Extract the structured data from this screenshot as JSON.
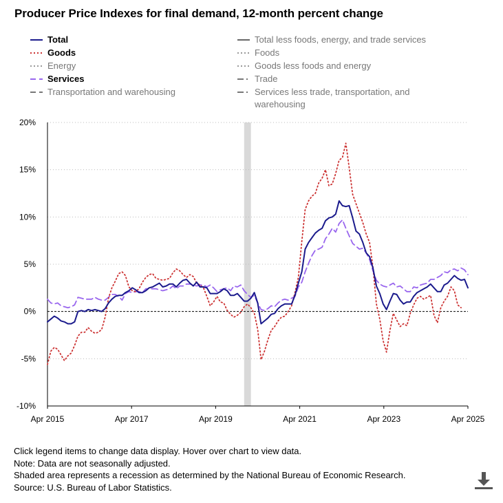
{
  "title": "Producer Price Indexes for final demand, 12-month percent change",
  "legend": [
    {
      "key": "total",
      "label": "Total",
      "color": "#1a1a8c",
      "dash": "solid",
      "active": true
    },
    {
      "key": "total_less",
      "label": "Total less foods, energy, and trade services",
      "color": "#666666",
      "dash": "solid",
      "active": false
    },
    {
      "key": "goods",
      "label": "Goods",
      "color": "#cc3333",
      "dash": "dot",
      "active": true
    },
    {
      "key": "foods",
      "label": "Foods",
      "color": "#999999",
      "dash": "dot",
      "active": false
    },
    {
      "key": "energy",
      "label": "Energy",
      "color": "#999999",
      "dash": "dot",
      "active": false
    },
    {
      "key": "goods_less",
      "label": "Goods less foods and energy",
      "color": "#999999",
      "dash": "dot",
      "active": false
    },
    {
      "key": "services",
      "label": "Services",
      "color": "#9966ee",
      "dash": "dash",
      "active": true
    },
    {
      "key": "trade",
      "label": "Trade",
      "color": "#777777",
      "dash": "dashdot",
      "active": false
    },
    {
      "key": "transport",
      "label": "Transportation and warehousing",
      "color": "#777777",
      "dash": "dash",
      "active": false
    },
    {
      "key": "services_less",
      "label": "Services less trade, transportation, and warehousing",
      "color": "#777777",
      "dash": "dashdot",
      "active": false
    }
  ],
  "notes": [
    "Click legend items to change data display. Hover over chart to view data.",
    "Note: Data are not seasonally adjusted.",
    "Shaded area represents a recession as determined by the National Bureau of Economic Research.",
    "Source: U.S. Bureau of Labor Statistics."
  ],
  "download_icon": "download-icon",
  "chart_data": {
    "type": "line",
    "title": "Producer Price Indexes for final demand, 12-month percent change",
    "x_start": "Apr 2015",
    "x_end": "Apr 2025",
    "x_tick_labels": [
      "Apr 2015",
      "Apr 2017",
      "Apr 2019",
      "Apr 2021",
      "Apr 2023",
      "Apr 2025"
    ],
    "ylim": [
      -10,
      20
    ],
    "y_ticks": [
      -10,
      -5,
      0,
      5,
      10,
      15,
      20
    ],
    "y_tick_labels": [
      "-10%",
      "-5%",
      "0%",
      "5%",
      "10%",
      "15%",
      "20%"
    ],
    "recession": {
      "start_month_index": 58,
      "end_month_index": 60
    },
    "series": [
      {
        "name": "Total",
        "values": [
          -1.1,
          -0.8,
          -0.5,
          -0.7,
          -1.0,
          -1.1,
          -1.3,
          -1.3,
          -1.1,
          0.0,
          0.1,
          0.0,
          0.2,
          0.1,
          0.2,
          0.1,
          0.0,
          0.3,
          0.9,
          1.3,
          1.6,
          1.7,
          1.7,
          2.0,
          2.2,
          2.5,
          2.3,
          2.0,
          2.0,
          2.2,
          2.5,
          2.6,
          2.8,
          3.0,
          2.6,
          2.7,
          2.9,
          2.9,
          2.6,
          3.0,
          3.3,
          3.4,
          3.0,
          2.7,
          3.1,
          2.6,
          2.6,
          2.5,
          1.9,
          1.9,
          1.9,
          2.1,
          2.4,
          2.2,
          1.7,
          1.7,
          1.9,
          1.5,
          1.1,
          1.1,
          1.4,
          2.0,
          0.9,
          -1.3,
          -1.0,
          -0.7,
          -0.3,
          -0.2,
          0.3,
          0.6,
          0.8,
          0.8,
          0.8,
          1.7,
          3.0,
          4.2,
          6.6,
          7.3,
          7.8,
          8.3,
          8.6,
          8.8,
          9.6,
          9.9,
          10.0,
          10.3,
          11.7,
          11.2,
          11.1,
          11.2,
          9.9,
          8.5,
          8.2,
          7.3,
          6.2,
          5.8,
          4.6,
          2.7,
          1.9,
          0.8,
          0.2,
          1.1,
          1.9,
          1.8,
          1.2,
          0.8,
          1.0,
          1.0,
          1.6,
          2.0,
          2.2,
          2.4,
          2.6,
          2.9,
          2.5,
          2.1,
          2.1,
          2.8,
          3.0,
          3.4,
          3.8,
          3.5,
          3.3,
          3.4,
          2.5
        ],
        "color": "#1a1a8c"
      },
      {
        "name": "Goods",
        "values": [
          -5.6,
          -4.2,
          -3.8,
          -4.0,
          -4.6,
          -5.2,
          -4.7,
          -4.4,
          -3.6,
          -2.6,
          -2.2,
          -2.2,
          -1.7,
          -2.1,
          -2.3,
          -2.2,
          -1.9,
          -0.6,
          1.4,
          2.5,
          3.2,
          4.0,
          4.2,
          3.8,
          2.6,
          2.2,
          2.1,
          2.4,
          3.1,
          3.6,
          3.9,
          4.0,
          3.5,
          3.4,
          3.3,
          3.4,
          3.5,
          4.1,
          4.5,
          4.3,
          3.9,
          3.6,
          3.9,
          3.7,
          3.0,
          2.8,
          2.5,
          1.6,
          0.6,
          1.0,
          1.6,
          1.0,
          0.9,
          0.1,
          -0.3,
          -0.6,
          -0.4,
          -0.1,
          0.5,
          0.8,
          0.4,
          -0.2,
          -1.9,
          -5.1,
          -4.2,
          -3.0,
          -2.0,
          -1.6,
          -1.0,
          -0.6,
          -0.5,
          0.0,
          0.6,
          2.0,
          3.6,
          7.4,
          10.8,
          11.7,
          12.2,
          12.5,
          13.6,
          14.1,
          15.0,
          13.3,
          13.5,
          14.6,
          16.0,
          16.3,
          17.8,
          15.2,
          12.4,
          11.4,
          10.4,
          9.4,
          8.2,
          7.3,
          4.7,
          0.8,
          -0.8,
          -3.1,
          -4.3,
          -2.0,
          -0.2,
          -0.9,
          -1.6,
          -1.3,
          -1.5,
          -0.2,
          0.7,
          1.4,
          1.6,
          1.3,
          1.5,
          1.7,
          -0.4,
          -1.2,
          0.4,
          1.1,
          1.6,
          2.6,
          2.2,
          0.7,
          0.4
        ],
        "color": "#cc3333"
      },
      {
        "name": "Services",
        "values": [
          1.3,
          0.9,
          0.8,
          0.9,
          0.6,
          0.5,
          0.4,
          0.5,
          0.7,
          1.5,
          1.4,
          1.3,
          1.3,
          1.3,
          1.5,
          1.3,
          1.2,
          1.2,
          1.5,
          1.8,
          1.8,
          1.6,
          1.2,
          1.9,
          2.1,
          2.0,
          2.1,
          2.1,
          2.0,
          2.4,
          2.4,
          2.4,
          2.4,
          2.3,
          2.2,
          2.3,
          2.4,
          2.7,
          2.4,
          2.7,
          2.7,
          2.9,
          2.9,
          2.8,
          2.7,
          2.8,
          2.8,
          2.6,
          2.8,
          2.5,
          2.1,
          2.3,
          2.4,
          2.5,
          2.2,
          2.7,
          2.6,
          2.8,
          2.2,
          1.8,
          1.5,
          1.7,
          0.9,
          0.2,
          0.1,
          0.3,
          0.6,
          0.5,
          0.9,
          1.2,
          1.3,
          1.2,
          1.4,
          1.6,
          2.6,
          3.1,
          4.2,
          5.1,
          5.9,
          6.5,
          6.6,
          6.8,
          7.7,
          8.2,
          8.8,
          8.4,
          9.3,
          9.7,
          8.8,
          8.0,
          7.2,
          6.9,
          6.6,
          6.7,
          6.2,
          5.5,
          4.3,
          3.3,
          2.9,
          2.7,
          2.6,
          2.8,
          3.0,
          2.6,
          2.7,
          2.4,
          2.1,
          2.1,
          2.6,
          2.5,
          2.8,
          2.9,
          3.0,
          3.4,
          3.4,
          3.6,
          3.8,
          4.2,
          4.1,
          4.4,
          4.5,
          4.3,
          4.6,
          4.4,
          3.9
        ],
        "color": "#9966ee"
      }
    ]
  }
}
